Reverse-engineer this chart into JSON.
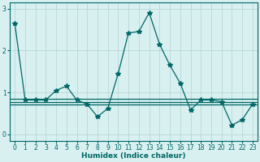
{
  "xlabel": "Humidex (Indice chaleur)",
  "ylabel": "",
  "background_color": "#d8f0f0",
  "grid_color": "#b8d8d8",
  "line_color": "#006666",
  "x": [
    0,
    1,
    2,
    3,
    4,
    5,
    6,
    7,
    8,
    9,
    10,
    11,
    12,
    13,
    14,
    15,
    16,
    17,
    18,
    19,
    20,
    21,
    22,
    23
  ],
  "y_main": [
    2.65,
    0.82,
    0.82,
    0.82,
    1.05,
    1.15,
    0.82,
    0.72,
    0.42,
    0.62,
    1.45,
    2.42,
    2.45,
    2.9,
    2.15,
    1.65,
    1.22,
    0.58,
    0.82,
    0.82,
    0.78,
    0.22,
    0.35,
    0.72
  ],
  "y_line1": 0.85,
  "y_line2": 0.78,
  "y_line3": 0.72,
  "ylim": [
    -0.15,
    3.15
  ],
  "xlim": [
    -0.5,
    23.5
  ],
  "yticks": [
    0,
    1,
    2,
    3
  ],
  "xticks": [
    0,
    1,
    2,
    3,
    4,
    5,
    6,
    7,
    8,
    9,
    10,
    11,
    12,
    13,
    14,
    15,
    16,
    17,
    18,
    19,
    20,
    21,
    22,
    23
  ],
  "marker": "*",
  "markersize": 4,
  "linewidth": 0.9
}
